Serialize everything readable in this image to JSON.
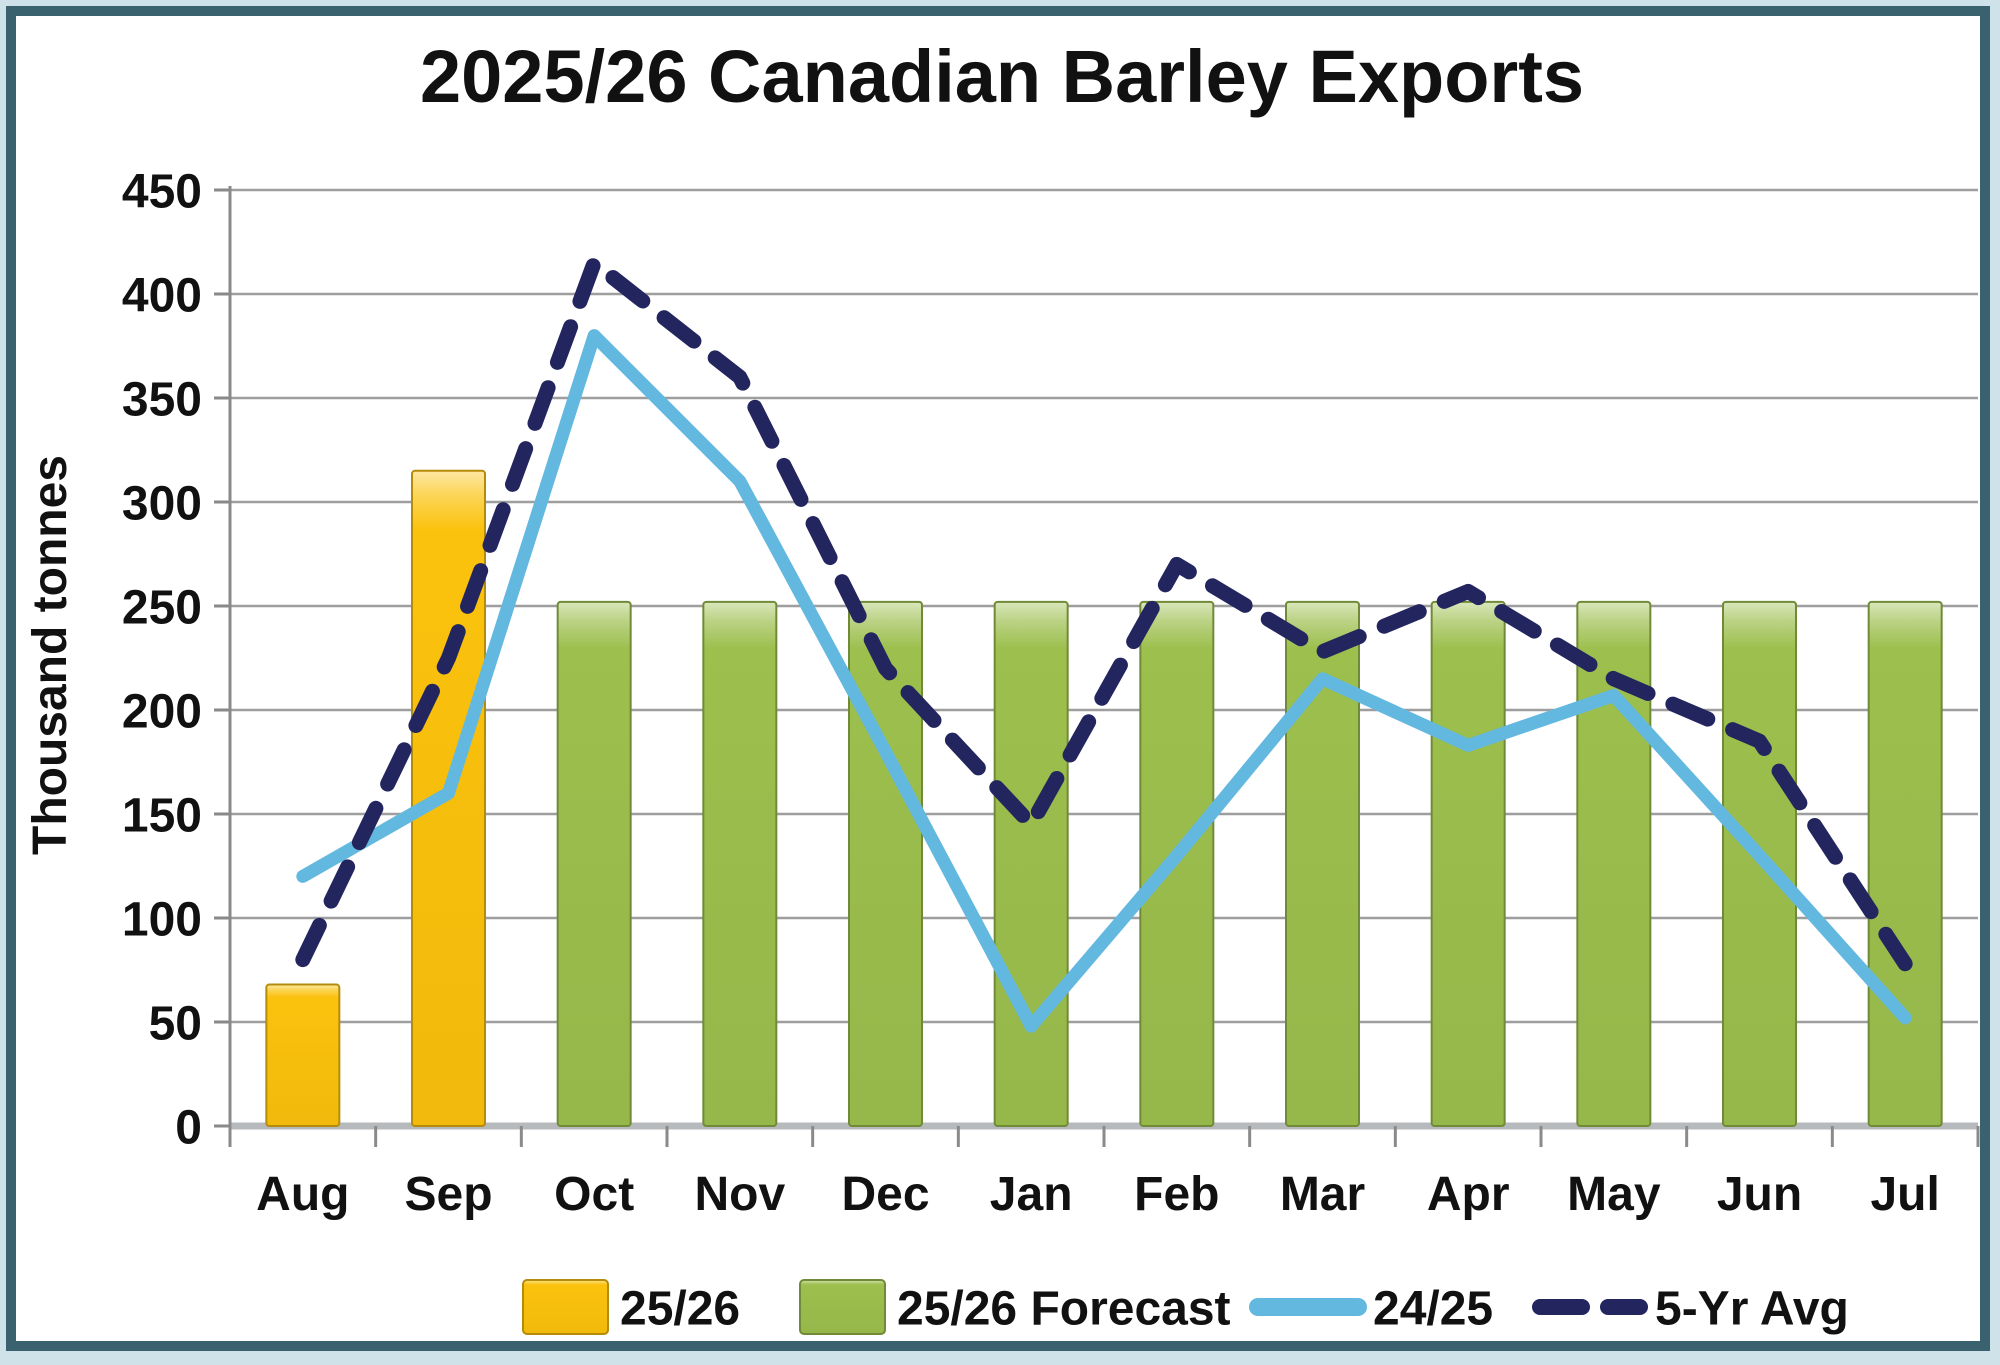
{
  "palette": {
    "page_background": "#cfe2e9",
    "frame_border": "#3a616e",
    "plot_background": "#ffffff",
    "gridline": "#9e9e9e",
    "axis_line": "#8a8a8a",
    "baseline": "#b6babd",
    "text": "#111111"
  },
  "chart_data": {
    "type": "combo-bar-line",
    "title": "2025/26 Canadian Barley Exports",
    "ylabel": "Thousand tonnes",
    "xlabel": "",
    "ylim": [
      0,
      450
    ],
    "ytick_step": 50,
    "yticks": [
      0,
      50,
      100,
      150,
      200,
      250,
      300,
      350,
      400,
      450
    ],
    "grid": true,
    "legend_position": "bottom",
    "categories": [
      "Aug",
      "Sep",
      "Oct",
      "Nov",
      "Dec",
      "Jan",
      "Feb",
      "Mar",
      "Apr",
      "May",
      "Jun",
      "Jul"
    ],
    "series": [
      {
        "name": "25/26",
        "type": "bar",
        "color": "#fbc20d",
        "values": [
          68,
          315,
          null,
          null,
          null,
          null,
          null,
          null,
          null,
          null,
          null,
          null
        ]
      },
      {
        "name": "25/26 Forecast",
        "type": "bar",
        "color": "#9cbf4d",
        "values": [
          null,
          null,
          252,
          252,
          252,
          252,
          252,
          252,
          252,
          252,
          252,
          252
        ]
      },
      {
        "name": "24/25",
        "type": "line",
        "color": "#63b8e0",
        "dash": false,
        "values": [
          120,
          160,
          380,
          310,
          180,
          48,
          130,
          215,
          183,
          207,
          130,
          52
        ]
      },
      {
        "name": "5-Yr Avg",
        "type": "line",
        "color": "#23255f",
        "dash": true,
        "values": [
          80,
          225,
          415,
          360,
          220,
          145,
          270,
          228,
          257,
          215,
          185,
          78
        ]
      }
    ]
  }
}
